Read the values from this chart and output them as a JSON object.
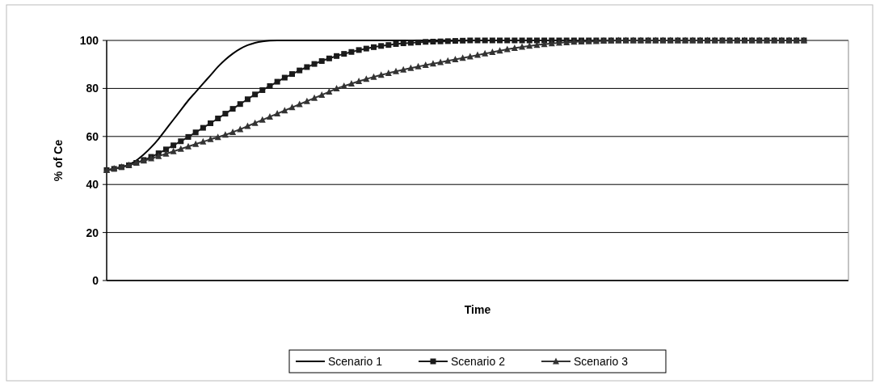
{
  "chart_data": {
    "type": "line",
    "xlabel": "Time",
    "ylabel": "% of Ce",
    "ylim": [
      0,
      100
    ],
    "yticks": [
      0,
      20,
      40,
      60,
      80,
      100
    ],
    "grid": "y",
    "legend": "bottom",
    "tick_labels": "y",
    "categories": [
      null,
      null,
      null,
      null,
      null,
      null,
      null,
      null,
      null,
      null,
      null,
      null,
      null,
      null,
      null,
      null,
      null,
      null,
      null,
      null,
      null,
      null,
      null,
      null,
      null,
      null,
      null,
      null,
      null,
      null,
      null,
      null,
      null,
      null,
      null,
      null,
      null,
      null,
      null,
      null,
      null,
      null,
      null,
      null,
      null,
      null,
      null,
      null,
      null,
      null,
      null,
      null,
      null,
      null,
      null,
      null,
      null,
      null,
      null,
      null,
      null,
      null,
      null,
      null,
      null,
      null,
      null,
      null,
      null,
      null,
      null,
      null,
      null,
      null,
      null,
      null,
      null,
      null,
      null,
      null,
      null,
      null,
      null,
      null,
      null,
      null,
      null,
      null,
      null,
      null,
      null,
      null,
      null,
      null,
      null,
      null,
      null,
      null,
      null,
      null,
      null
    ],
    "series": [
      {
        "name": "Scenario 1",
        "color": "#000000",
        "marker": "none",
        "values": [
          46,
          46.5,
          47.2,
          48.3,
          50,
          52.5,
          55.5,
          59,
          63,
          67,
          71,
          75,
          78.5,
          82,
          85.5,
          89,
          92,
          94.5,
          96.5,
          98,
          99,
          99.6,
          99.9,
          100,
          100,
          100,
          100,
          100,
          100,
          100,
          100,
          100,
          100,
          100,
          100,
          100,
          100,
          100,
          100,
          100,
          100,
          100,
          100,
          100,
          100,
          100,
          100,
          100,
          100,
          100,
          100,
          100,
          100,
          100,
          100,
          100,
          100,
          100,
          100,
          100,
          100,
          100,
          100,
          100,
          100,
          100,
          100,
          100,
          100,
          100,
          100,
          100,
          100,
          100,
          100,
          100,
          100,
          100,
          100,
          100,
          100,
          100,
          100,
          100,
          100,
          100,
          100,
          100,
          100,
          100,
          100,
          100,
          100,
          100,
          100,
          null,
          null,
          null,
          null,
          null,
          null
        ]
      },
      {
        "name": "Scenario 2",
        "color": "#1a1a1a",
        "marker": "square",
        "values": [
          46,
          46.5,
          47.2,
          48,
          49,
          50.2,
          51.5,
          53,
          54.6,
          56.3,
          58,
          59.8,
          61.7,
          63.6,
          65.5,
          67.5,
          69.5,
          71.5,
          73.5,
          75.5,
          77.5,
          79.3,
          81,
          82.8,
          84.5,
          86,
          87.5,
          88.9,
          90.2,
          91.4,
          92.5,
          93.5,
          94.4,
          95.2,
          96,
          96.6,
          97.2,
          97.7,
          98.1,
          98.5,
          98.8,
          99,
          99.2,
          99.4,
          99.5,
          99.6,
          99.7,
          99.8,
          99.9,
          100,
          100,
          100,
          100,
          100,
          100,
          100,
          100,
          100,
          100,
          100,
          100,
          100,
          100,
          100,
          100,
          100,
          100,
          100,
          100,
          100,
          100,
          100,
          100,
          100,
          100,
          100,
          100,
          100,
          100,
          100,
          100,
          100,
          100,
          100,
          100,
          100,
          100,
          100,
          100,
          100,
          100,
          100,
          100,
          100,
          100,
          null,
          null,
          null,
          null,
          null,
          null
        ]
      },
      {
        "name": "Scenario 3",
        "color": "#333333",
        "marker": "triangle",
        "values": [
          46,
          46.6,
          47.3,
          48.1,
          49,
          49.9,
          50.8,
          51.8,
          52.8,
          53.8,
          54.8,
          55.8,
          56.8,
          57.8,
          58.8,
          59.7,
          60.7,
          61.8,
          63,
          64.3,
          65.6,
          66.9,
          68.2,
          69.5,
          70.8,
          72.1,
          73.4,
          74.7,
          76,
          77.3,
          78.6,
          80,
          81,
          82,
          83,
          83.9,
          84.8,
          85.6,
          86.4,
          87.1,
          87.8,
          88.5,
          89.1,
          89.7,
          90.3,
          90.9,
          91.5,
          92.1,
          92.7,
          93.3,
          93.9,
          94.5,
          95.1,
          95.7,
          96.3,
          96.8,
          97.3,
          97.7,
          98.1,
          98.4,
          98.7,
          99,
          99.2,
          99.4,
          99.5,
          99.6,
          99.7,
          99.8,
          99.9,
          100,
          100,
          100,
          100,
          100,
          100,
          100,
          100,
          100,
          100,
          100,
          100,
          100,
          100,
          100,
          100,
          100,
          100,
          100,
          100,
          100,
          100,
          100,
          100,
          100,
          100,
          null,
          null,
          null,
          null,
          null,
          null
        ]
      }
    ]
  }
}
